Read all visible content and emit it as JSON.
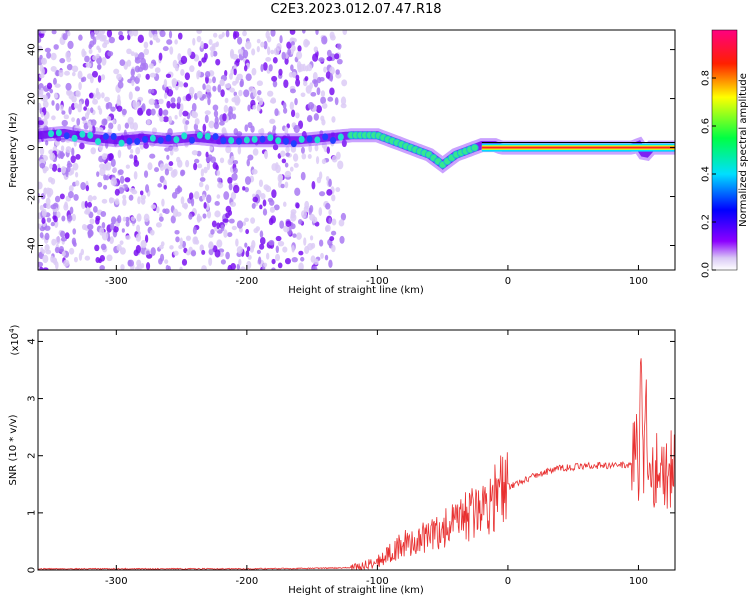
{
  "chart_data": [
    {
      "type": "heatmap",
      "title": "C2E3.2023.012.07.47.R18",
      "xlabel": "Height of straight line (km)",
      "ylabel": "Frequency (Hz)",
      "xlim": [
        -360,
        128
      ],
      "ylim": [
        -50,
        48
      ],
      "x_ticks": [
        -300,
        -200,
        -100,
        0,
        100
      ],
      "y_ticks": [
        -40,
        -20,
        0,
        20,
        40
      ],
      "colorbar": {
        "label": "Normalized spectral amplitude",
        "range": [
          0,
          1
        ],
        "ticks": [
          0.0,
          0.2,
          0.4,
          0.6,
          0.8
        ],
        "colors": [
          "#ffffff",
          "#c8b0f0",
          "#7a00ff",
          "#0000ff",
          "#00e0ff",
          "#00ff40",
          "#ffff00",
          "#ff2000",
          "#ff0080"
        ]
      },
      "ridge": {
        "x": [
          -360,
          -340,
          -320,
          -300,
          -280,
          -260,
          -240,
          -220,
          -200,
          -180,
          -160,
          -140,
          -120,
          -100,
          -90,
          -80,
          -70,
          -60,
          -55,
          -50,
          -45,
          -40,
          -35,
          -30,
          -25,
          -20,
          -15,
          -10,
          -5,
          0,
          20,
          40,
          60,
          80,
          95,
          100,
          105,
          110,
          128
        ],
        "y": [
          5,
          6,
          4,
          3,
          4,
          3,
          4,
          3,
          3,
          3,
          3,
          4,
          5,
          5,
          3,
          1,
          -1,
          -3,
          -5,
          -7,
          -5,
          -3,
          -2,
          -1,
          0,
          1,
          1,
          1,
          0,
          0,
          0,
          0,
          0,
          0,
          0,
          1,
          -3,
          0,
          0
        ]
      }
    },
    {
      "type": "line",
      "xlabel": "Height of straight line (km)",
      "ylabel": "SNR (10 * v/v)",
      "yscale_label": "(x10",
      "yscale_exp": "4",
      "yscale_close": ")",
      "xlim": [
        -360,
        128
      ],
      "ylim": [
        0,
        4.2
      ],
      "x_ticks": [
        -300,
        -200,
        -100,
        0,
        100
      ],
      "y_ticks": [
        0,
        1,
        2,
        3,
        4
      ],
      "line_color": "#e83030",
      "series": [
        {
          "x": [
            -360,
            -300,
            -250,
            -200,
            -150,
            -120,
            -110,
            -100,
            -90,
            -80,
            -70,
            -60,
            -50,
            -40,
            -30,
            -20,
            -10,
            0,
            10,
            20,
            30,
            40,
            50,
            60,
            70,
            80,
            90,
            95,
            98,
            100,
            102,
            104,
            106,
            108,
            110,
            128
          ],
          "values": [
            0.02,
            0.02,
            0.02,
            0.02,
            0.03,
            0.04,
            0.08,
            0.15,
            0.3,
            0.45,
            0.5,
            0.6,
            0.7,
            0.8,
            0.95,
            1.1,
            1.3,
            1.45,
            1.55,
            1.65,
            1.72,
            1.78,
            1.8,
            1.82,
            1.83,
            1.83,
            1.84,
            1.85,
            2.6,
            1.2,
            3.8,
            1.5,
            2.7,
            1.78,
            1.76,
            1.74
          ]
        }
      ]
    }
  ]
}
